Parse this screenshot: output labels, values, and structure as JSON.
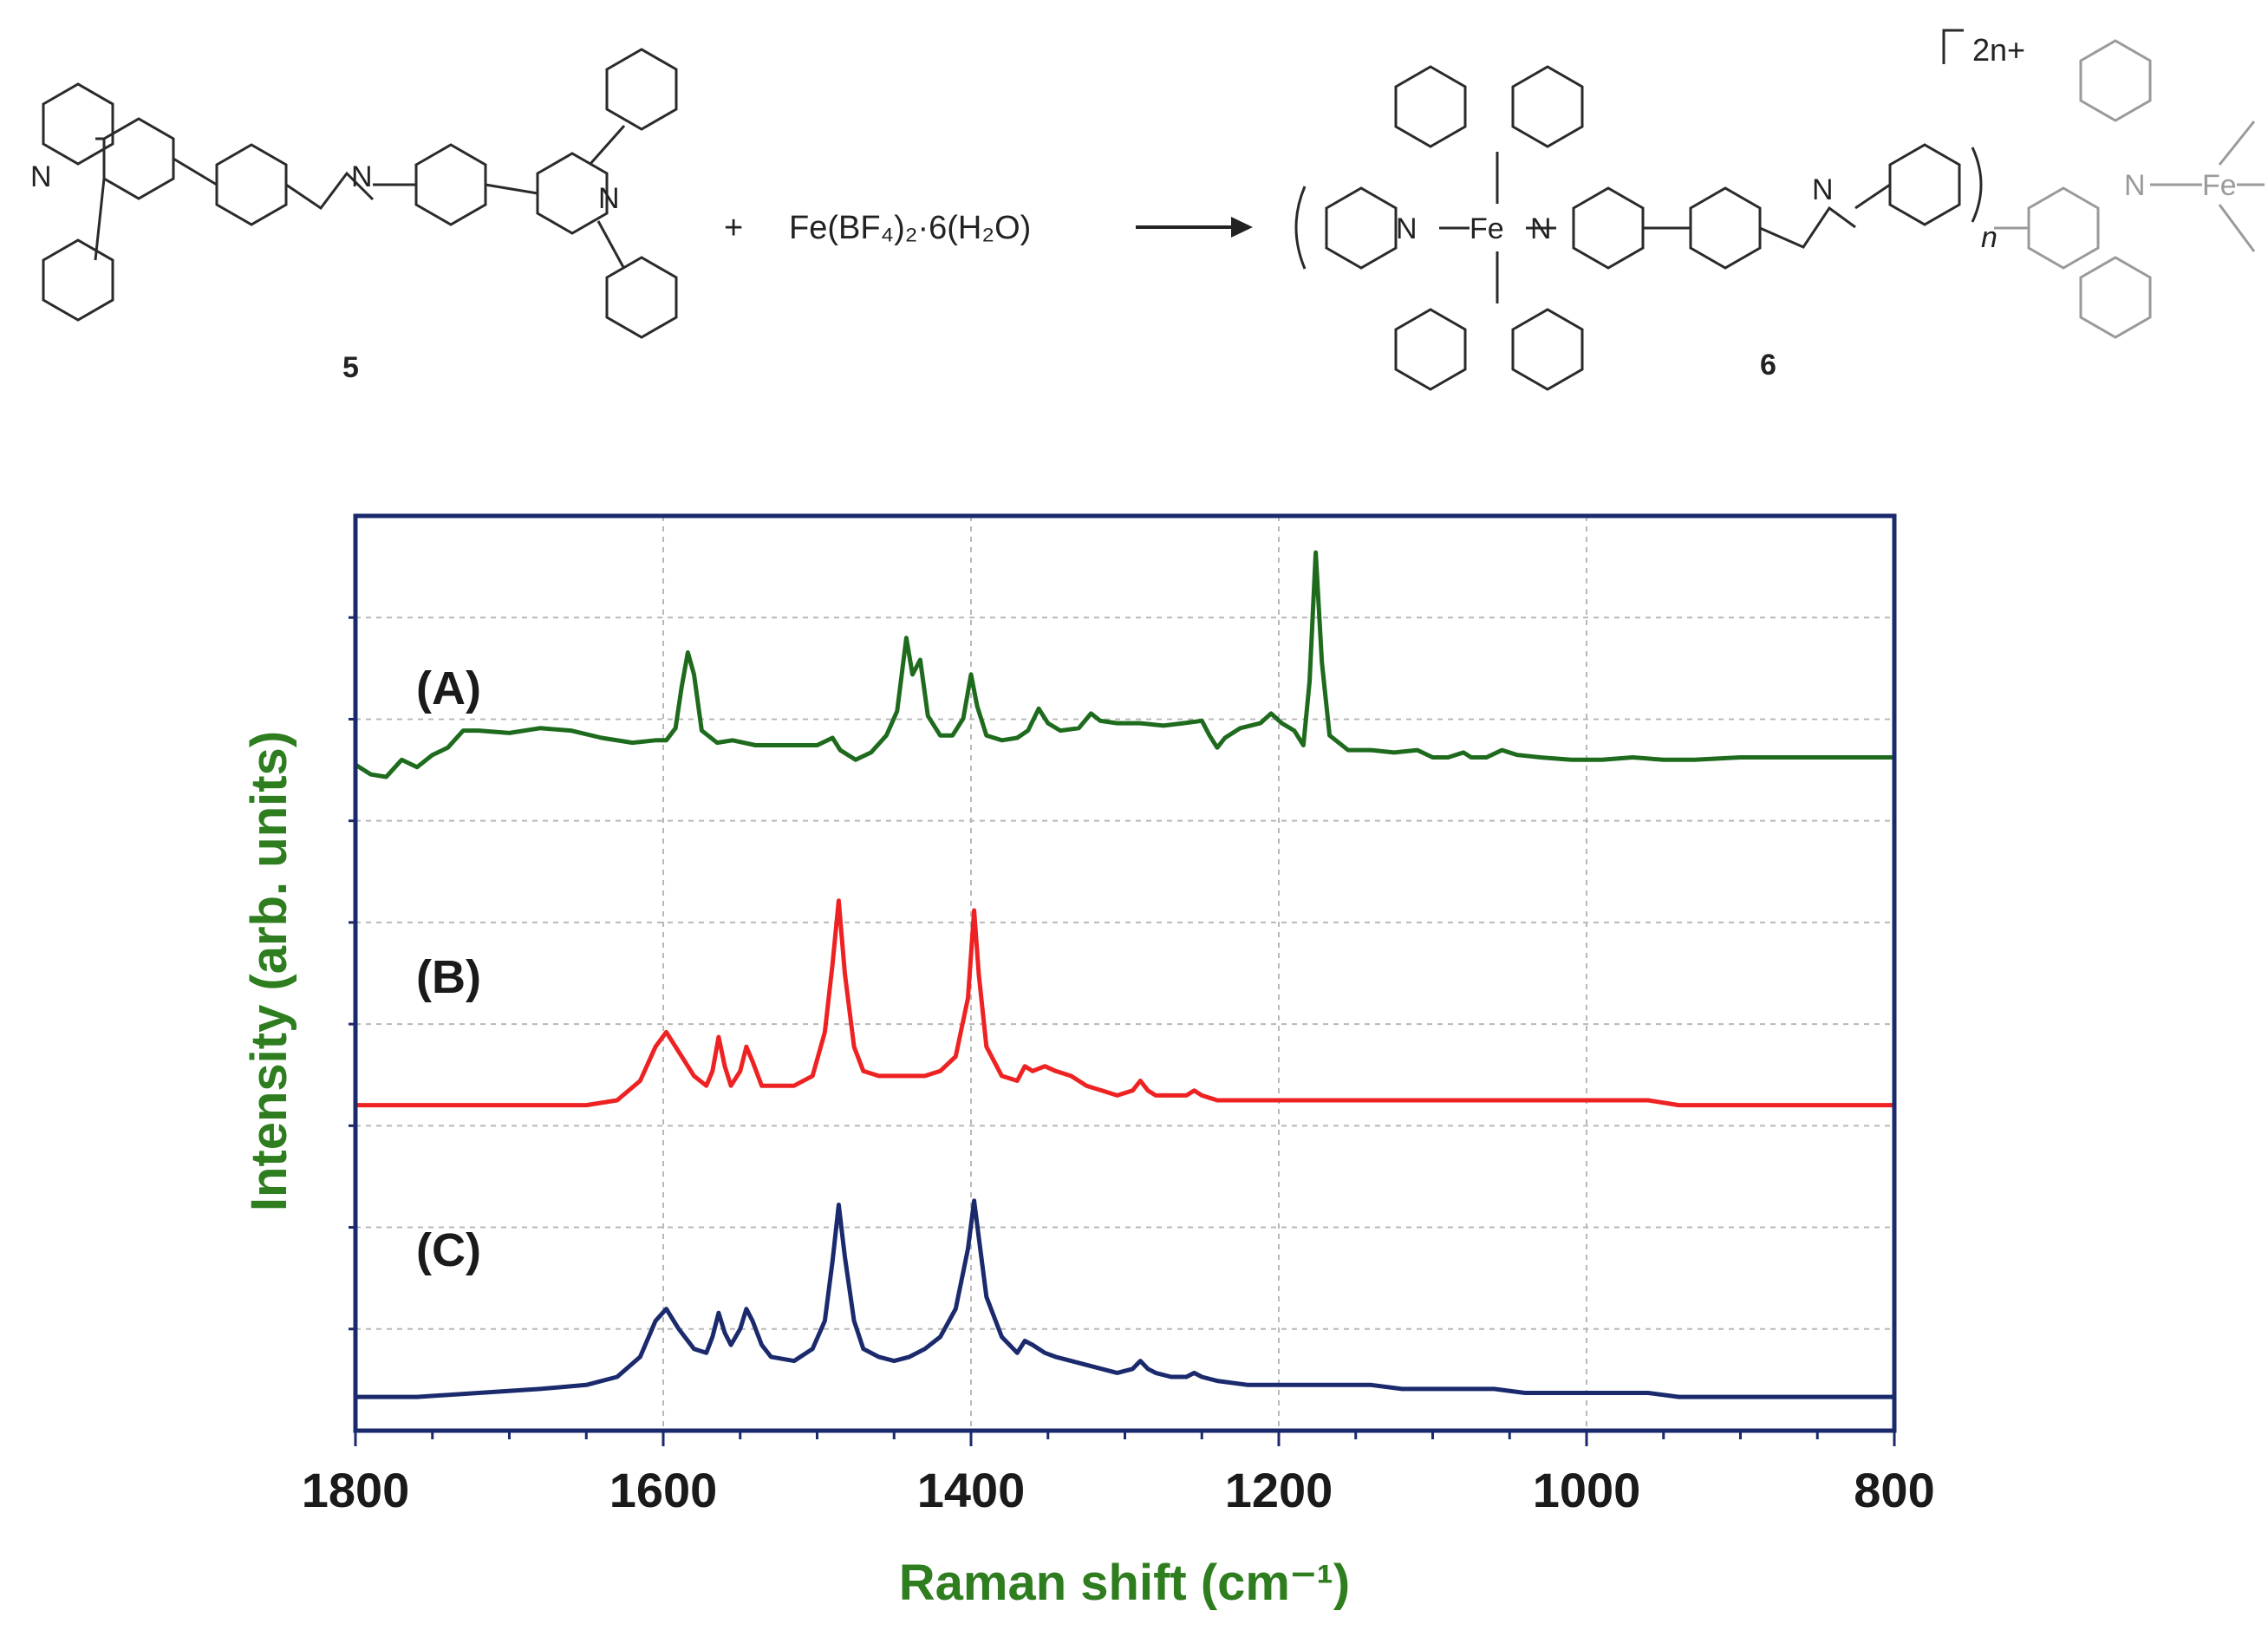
{
  "scheme": {
    "reagent": "Fe(BF₄)₂·6(H₂O)",
    "compound_left_label": "5",
    "compound_right_label": "6",
    "charge": "2n+",
    "repeat": "n",
    "atom_N": "N",
    "atom_Fe": "Fe",
    "plus": "+"
  },
  "chart_data": {
    "type": "line",
    "xlabel": "Raman shift (cm⁻¹)",
    "ylabel": "Intensity (arb. units)",
    "xlim": [
      1800,
      800
    ],
    "x_reversed": true,
    "xticks": [
      "1800",
      "1600",
      "1400",
      "1200",
      "1000",
      "800"
    ],
    "grid": true,
    "colors": {
      "A": "#1e6b1e",
      "B": "#ee2222",
      "C": "#1a2a6c",
      "frame": "#1a2a6c",
      "axis_label": "#2e7d1f"
    },
    "series": [
      {
        "name": "(A)",
        "points": [
          [
            1800,
            0.48
          ],
          [
            1790,
            0.44
          ],
          [
            1780,
            0.43
          ],
          [
            1770,
            0.5
          ],
          [
            1760,
            0.47
          ],
          [
            1750,
            0.52
          ],
          [
            1740,
            0.55
          ],
          [
            1730,
            0.62
          ],
          [
            1720,
            0.62
          ],
          [
            1700,
            0.61
          ],
          [
            1680,
            0.63
          ],
          [
            1660,
            0.62
          ],
          [
            1640,
            0.59
          ],
          [
            1620,
            0.57
          ],
          [
            1605,
            0.58
          ],
          [
            1598,
            0.58
          ],
          [
            1592,
            0.63
          ],
          [
            1588,
            0.8
          ],
          [
            1584,
            0.94
          ],
          [
            1580,
            0.85
          ],
          [
            1575,
            0.62
          ],
          [
            1565,
            0.57
          ],
          [
            1555,
            0.58
          ],
          [
            1540,
            0.56
          ],
          [
            1520,
            0.56
          ],
          [
            1500,
            0.56
          ],
          [
            1490,
            0.59
          ],
          [
            1485,
            0.54
          ],
          [
            1475,
            0.5
          ],
          [
            1465,
            0.53
          ],
          [
            1455,
            0.6
          ],
          [
            1448,
            0.7
          ],
          [
            1442,
            1.0
          ],
          [
            1438,
            0.85
          ],
          [
            1433,
            0.91
          ],
          [
            1428,
            0.68
          ],
          [
            1420,
            0.6
          ],
          [
            1412,
            0.6
          ],
          [
            1405,
            0.67
          ],
          [
            1400,
            0.85
          ],
          [
            1396,
            0.72
          ],
          [
            1390,
            0.6
          ],
          [
            1380,
            0.58
          ],
          [
            1370,
            0.59
          ],
          [
            1363,
            0.62
          ],
          [
            1356,
            0.71
          ],
          [
            1350,
            0.65
          ],
          [
            1342,
            0.62
          ],
          [
            1330,
            0.63
          ],
          [
            1322,
            0.69
          ],
          [
            1316,
            0.66
          ],
          [
            1305,
            0.65
          ],
          [
            1290,
            0.65
          ],
          [
            1275,
            0.64
          ],
          [
            1262,
            0.65
          ],
          [
            1250,
            0.66
          ],
          [
            1245,
            0.6
          ],
          [
            1240,
            0.55
          ],
          [
            1235,
            0.59
          ],
          [
            1225,
            0.63
          ],
          [
            1212,
            0.65
          ],
          [
            1205,
            0.69
          ],
          [
            1198,
            0.65
          ],
          [
            1190,
            0.62
          ],
          [
            1184,
            0.56
          ],
          [
            1180,
            0.82
          ],
          [
            1176,
            1.35
          ],
          [
            1172,
            0.9
          ],
          [
            1167,
            0.6
          ],
          [
            1155,
            0.54
          ],
          [
            1140,
            0.54
          ],
          [
            1125,
            0.53
          ],
          [
            1110,
            0.54
          ],
          [
            1100,
            0.51
          ],
          [
            1090,
            0.51
          ],
          [
            1080,
            0.53
          ],
          [
            1075,
            0.51
          ],
          [
            1065,
            0.51
          ],
          [
            1055,
            0.54
          ],
          [
            1045,
            0.52
          ],
          [
            1030,
            0.51
          ],
          [
            1010,
            0.5
          ],
          [
            990,
            0.5
          ],
          [
            970,
            0.51
          ],
          [
            950,
            0.5
          ],
          [
            930,
            0.5
          ],
          [
            900,
            0.51
          ],
          [
            880,
            0.51
          ],
          [
            860,
            0.51
          ],
          [
            840,
            0.51
          ],
          [
            820,
            0.51
          ],
          [
            800,
            0.51
          ]
        ]
      },
      {
        "name": "(B)",
        "points": [
          [
            1800,
            0.18
          ],
          [
            1760,
            0.18
          ],
          [
            1720,
            0.18
          ],
          [
            1680,
            0.18
          ],
          [
            1650,
            0.18
          ],
          [
            1630,
            0.19
          ],
          [
            1615,
            0.23
          ],
          [
            1605,
            0.3
          ],
          [
            1598,
            0.33
          ],
          [
            1590,
            0.29
          ],
          [
            1580,
            0.24
          ],
          [
            1572,
            0.22
          ],
          [
            1568,
            0.25
          ],
          [
            1564,
            0.32
          ],
          [
            1560,
            0.26
          ],
          [
            1556,
            0.22
          ],
          [
            1550,
            0.25
          ],
          [
            1546,
            0.3
          ],
          [
            1542,
            0.27
          ],
          [
            1536,
            0.22
          ],
          [
            1530,
            0.22
          ],
          [
            1515,
            0.22
          ],
          [
            1503,
            0.24
          ],
          [
            1495,
            0.33
          ],
          [
            1490,
            0.47
          ],
          [
            1486,
            0.6
          ],
          [
            1482,
            0.45
          ],
          [
            1476,
            0.3
          ],
          [
            1470,
            0.25
          ],
          [
            1460,
            0.24
          ],
          [
            1450,
            0.24
          ],
          [
            1440,
            0.24
          ],
          [
            1430,
            0.24
          ],
          [
            1420,
            0.25
          ],
          [
            1410,
            0.28
          ],
          [
            1402,
            0.4
          ],
          [
            1398,
            0.58
          ],
          [
            1395,
            0.45
          ],
          [
            1390,
            0.3
          ],
          [
            1380,
            0.24
          ],
          [
            1370,
            0.23
          ],
          [
            1365,
            0.26
          ],
          [
            1360,
            0.25
          ],
          [
            1352,
            0.26
          ],
          [
            1345,
            0.25
          ],
          [
            1335,
            0.24
          ],
          [
            1325,
            0.22
          ],
          [
            1315,
            0.21
          ],
          [
            1305,
            0.2
          ],
          [
            1295,
            0.21
          ],
          [
            1290,
            0.23
          ],
          [
            1285,
            0.21
          ],
          [
            1280,
            0.2
          ],
          [
            1270,
            0.2
          ],
          [
            1260,
            0.2
          ],
          [
            1255,
            0.21
          ],
          [
            1250,
            0.2
          ],
          [
            1240,
            0.19
          ],
          [
            1220,
            0.19
          ],
          [
            1200,
            0.19
          ],
          [
            1180,
            0.19
          ],
          [
            1160,
            0.19
          ],
          [
            1140,
            0.19
          ],
          [
            1120,
            0.19
          ],
          [
            1100,
            0.19
          ],
          [
            1080,
            0.19
          ],
          [
            1060,
            0.19
          ],
          [
            1040,
            0.19
          ],
          [
            1020,
            0.19
          ],
          [
            1000,
            0.19
          ],
          [
            980,
            0.19
          ],
          [
            960,
            0.19
          ],
          [
            940,
            0.18
          ],
          [
            900,
            0.18
          ],
          [
            860,
            0.18
          ],
          [
            820,
            0.18
          ],
          [
            800,
            0.18
          ]
        ]
      },
      {
        "name": "(C)",
        "points": [
          [
            1800,
            0.05
          ],
          [
            1760,
            0.05
          ],
          [
            1720,
            0.06
          ],
          [
            1680,
            0.07
          ],
          [
            1650,
            0.08
          ],
          [
            1630,
            0.1
          ],
          [
            1615,
            0.15
          ],
          [
            1605,
            0.24
          ],
          [
            1598,
            0.27
          ],
          [
            1590,
            0.22
          ],
          [
            1580,
            0.17
          ],
          [
            1572,
            0.16
          ],
          [
            1568,
            0.2
          ],
          [
            1564,
            0.26
          ],
          [
            1560,
            0.21
          ],
          [
            1556,
            0.18
          ],
          [
            1550,
            0.22
          ],
          [
            1546,
            0.27
          ],
          [
            1542,
            0.24
          ],
          [
            1536,
            0.18
          ],
          [
            1530,
            0.15
          ],
          [
            1515,
            0.14
          ],
          [
            1503,
            0.17
          ],
          [
            1495,
            0.24
          ],
          [
            1490,
            0.39
          ],
          [
            1486,
            0.53
          ],
          [
            1482,
            0.4
          ],
          [
            1476,
            0.24
          ],
          [
            1470,
            0.17
          ],
          [
            1460,
            0.15
          ],
          [
            1450,
            0.14
          ],
          [
            1440,
            0.15
          ],
          [
            1430,
            0.17
          ],
          [
            1420,
            0.2
          ],
          [
            1410,
            0.27
          ],
          [
            1402,
            0.42
          ],
          [
            1398,
            0.54
          ],
          [
            1395,
            0.45
          ],
          [
            1390,
            0.3
          ],
          [
            1380,
            0.2
          ],
          [
            1370,
            0.16
          ],
          [
            1365,
            0.19
          ],
          [
            1360,
            0.18
          ],
          [
            1352,
            0.16
          ],
          [
            1345,
            0.15
          ],
          [
            1335,
            0.14
          ],
          [
            1325,
            0.13
          ],
          [
            1315,
            0.12
          ],
          [
            1305,
            0.11
          ],
          [
            1295,
            0.12
          ],
          [
            1290,
            0.14
          ],
          [
            1285,
            0.12
          ],
          [
            1280,
            0.11
          ],
          [
            1270,
            0.1
          ],
          [
            1260,
            0.1
          ],
          [
            1255,
            0.11
          ],
          [
            1250,
            0.1
          ],
          [
            1240,
            0.09
          ],
          [
            1220,
            0.08
          ],
          [
            1200,
            0.08
          ],
          [
            1180,
            0.08
          ],
          [
            1160,
            0.08
          ],
          [
            1140,
            0.08
          ],
          [
            1120,
            0.07
          ],
          [
            1100,
            0.07
          ],
          [
            1080,
            0.07
          ],
          [
            1060,
            0.07
          ],
          [
            1040,
            0.06
          ],
          [
            1020,
            0.06
          ],
          [
            1000,
            0.06
          ],
          [
            980,
            0.06
          ],
          [
            960,
            0.06
          ],
          [
            940,
            0.05
          ],
          [
            900,
            0.05
          ],
          [
            860,
            0.05
          ],
          [
            820,
            0.05
          ],
          [
            800,
            0.05
          ]
        ]
      }
    ]
  }
}
